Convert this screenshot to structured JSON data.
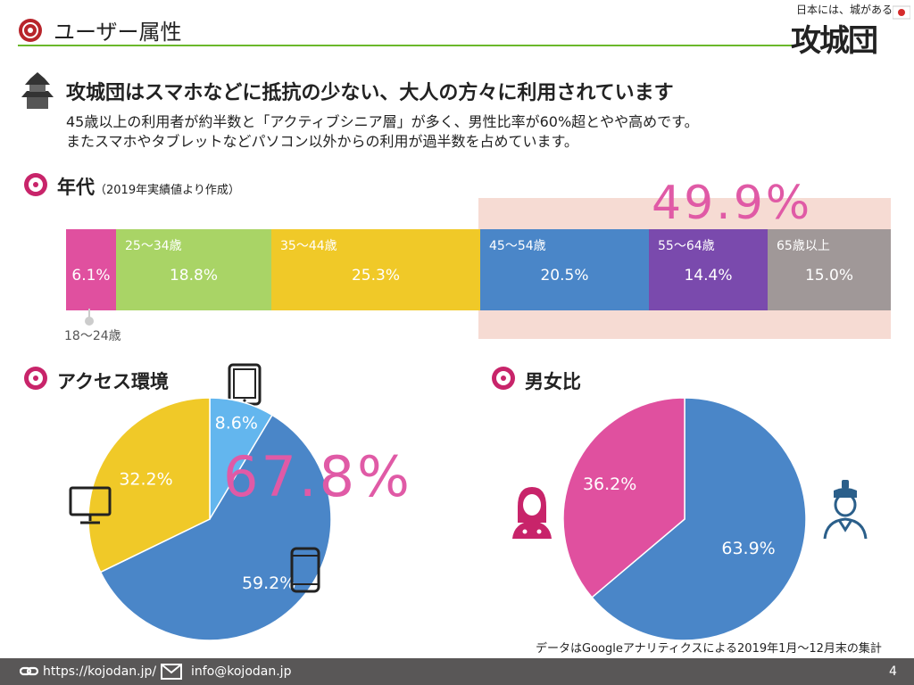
{
  "header": {
    "title": "ユーザー属性"
  },
  "logo": {
    "tagline": "日本には、城がある。",
    "mark": "攻城団"
  },
  "headline": "攻城団はスマホなどに抵抗の少ない、大人の方々に利用されています",
  "description": [
    "45歳以上の利用者が約半数と「アクティブシニア層」が多く、男性比率が60%超とやや高めです。",
    "またスマホやタブレットなどパソコン以外からの利用が過半数を占めています。"
  ],
  "age_section": {
    "title": "年代",
    "note": "（2019年実績値より作成）",
    "first_group_label": "18〜24歳",
    "highlight_value": "49.9%"
  },
  "access_section": {
    "title": "アクセス環境",
    "highlight_value": "67.8%"
  },
  "gender_section": {
    "title": "男女比"
  },
  "caption": "データはGoogleアナリティクスによる2019年1月〜12月末の集計",
  "footer": {
    "url": "https://kojodan.jp/",
    "email": "info@kojodan.jp",
    "page": "4"
  },
  "colors": {
    "pink": "#e0509f",
    "green": "#a9d466",
    "yellow": "#f0c928",
    "blue": "#4a86c8",
    "purple": "#7a4aad",
    "gray": "#a09898",
    "lightblue": "#63b6ee",
    "accent": "#e05aa6"
  },
  "chart_data": [
    {
      "type": "bar",
      "orientation": "stacked-horizontal",
      "categories": [
        "18〜24歳",
        "25〜34歳",
        "35〜44歳",
        "45〜54歳",
        "55〜64歳",
        "65歳以上"
      ],
      "values": [
        6.1,
        18.8,
        25.3,
        20.5,
        14.4,
        15.0
      ],
      "labels": [
        "6.1%",
        "18.8%",
        "25.3%",
        "20.5%",
        "14.4%",
        "15.0%"
      ],
      "segment_titles": [
        "",
        "25〜34歳",
        "35〜44歳",
        "45〜54歳",
        "55〜64歳",
        "65歳以上"
      ],
      "colors": [
        "#e0509f",
        "#a9d466",
        "#f0c928",
        "#4a86c8",
        "#7a4aad",
        "#a09898"
      ]
    },
    {
      "type": "pie",
      "categories": [
        "tablet",
        "smartphone",
        "pc"
      ],
      "values": [
        8.6,
        59.2,
        32.2
      ],
      "labels": [
        "8.6%",
        "59.2%",
        "32.2%"
      ],
      "colors": [
        "#63b6ee",
        "#4a86c8",
        "#f0c928"
      ]
    },
    {
      "type": "pie",
      "categories": [
        "male",
        "female"
      ],
      "values": [
        63.9,
        36.2
      ],
      "labels": [
        "63.9%",
        "36.2%"
      ],
      "colors": [
        "#4a86c8",
        "#e0509f"
      ]
    }
  ]
}
